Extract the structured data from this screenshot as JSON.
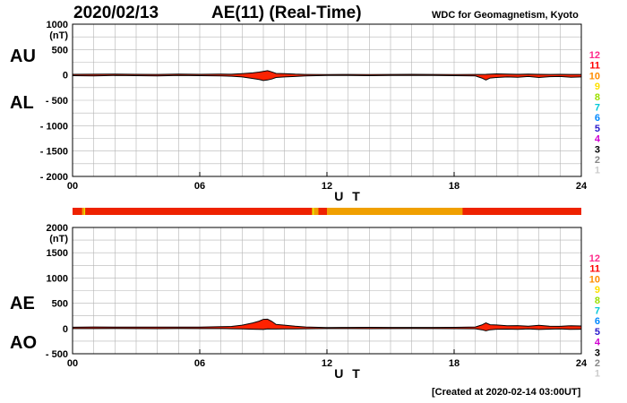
{
  "header": {
    "date": "2020/02/13",
    "title": "AE(11) (Real-Time)",
    "credit": "WDC for Geomagnetism, Kyoto"
  },
  "footer": {
    "created": "[Created at 2020-02-14 03:00UT]"
  },
  "colors": {
    "fill": "#ff2200",
    "line": "#000000",
    "grid": "#b4b4b4",
    "baseline": "#666666",
    "status_red": "#ee2200",
    "status_orange": "#f0a000",
    "status_yellow": "#e8e800"
  },
  "station_legend": [
    {
      "label": "12",
      "color": "#ff2a8a"
    },
    {
      "label": "11",
      "color": "#ff0000"
    },
    {
      "label": "10",
      "color": "#ff8c00"
    },
    {
      "label": "9",
      "color": "#ffe000"
    },
    {
      "label": "8",
      "color": "#9be000"
    },
    {
      "label": "7",
      "color": "#00c8d8"
    },
    {
      "label": "6",
      "color": "#0088ff"
    },
    {
      "label": "5",
      "color": "#2a1acc"
    },
    {
      "label": "4",
      "color": "#d000d0"
    },
    {
      "label": "3",
      "color": "#000000"
    },
    {
      "label": "2",
      "color": "#888888"
    },
    {
      "label": "1",
      "color": "#cccccc"
    }
  ],
  "status_bar": {
    "segments": [
      {
        "start": 0,
        "end": 0.45,
        "color": "#ee2200"
      },
      {
        "start": 0.45,
        "end": 0.55,
        "color": "#f0a000"
      },
      {
        "start": 0.55,
        "end": 0.6,
        "color": "#e8e800"
      },
      {
        "start": 0.6,
        "end": 11.3,
        "color": "#ee2200"
      },
      {
        "start": 11.3,
        "end": 11.4,
        "color": "#e8e800"
      },
      {
        "start": 11.4,
        "end": 11.6,
        "color": "#f0a000"
      },
      {
        "start": 11.6,
        "end": 12.0,
        "color": "#ee2200"
      },
      {
        "start": 12.0,
        "end": 18.4,
        "color": "#f0a000"
      },
      {
        "start": 18.4,
        "end": 24,
        "color": "#ee2200"
      }
    ]
  },
  "chart_data": [
    {
      "type": "area",
      "name": "AU-AL",
      "ylabel": [
        "AU",
        "AL"
      ],
      "unit": "(nT)",
      "xlabel": "U T",
      "xlim": [
        0,
        24
      ],
      "ylim": [
        -2000,
        1000
      ],
      "x_ticks": [
        0,
        6,
        12,
        18,
        24
      ],
      "x_tick_labels": [
        "00",
        "06",
        "12",
        "18",
        "24"
      ],
      "y_ticks": [
        1000,
        500,
        0,
        -500,
        -1000,
        -1500,
        -2000
      ],
      "y_tick_labels": [
        "1000",
        "500",
        "0",
        "- 500",
        "- 1000",
        "- 1500",
        "- 2000"
      ],
      "series": [
        {
          "name": "AU",
          "x": [
            0,
            1,
            2,
            3,
            4,
            5,
            6,
            7,
            7.5,
            8,
            8.5,
            8.8,
            9,
            9.2,
            9.4,
            9.6,
            10,
            10.5,
            11,
            12,
            13,
            14,
            15,
            16,
            17,
            18,
            19,
            19.5,
            20,
            20.5,
            21,
            21.5,
            22,
            22.5,
            23,
            23.5,
            24
          ],
          "y": [
            12,
            14,
            15,
            12,
            10,
            15,
            12,
            16,
            14,
            25,
            40,
            55,
            70,
            85,
            60,
            30,
            25,
            15,
            10,
            8,
            10,
            8,
            10,
            12,
            10,
            8,
            10,
            12,
            20,
            15,
            12,
            15,
            12,
            10,
            12,
            10,
            10
          ]
        },
        {
          "name": "AL",
          "x": [
            0,
            1,
            2,
            3,
            4,
            5,
            6,
            7,
            7.5,
            8,
            8.5,
            8.8,
            9,
            9.2,
            9.4,
            9.6,
            10,
            10.5,
            11,
            12,
            13,
            14,
            15,
            16,
            17,
            18,
            19,
            19.3,
            19.5,
            19.7,
            20,
            20.5,
            21,
            21.5,
            22,
            22.5,
            23,
            23.5,
            24
          ],
          "y": [
            -15,
            -18,
            -12,
            -15,
            -18,
            -12,
            -15,
            -20,
            -25,
            -40,
            -70,
            -90,
            -110,
            -100,
            -80,
            -50,
            -40,
            -30,
            -20,
            -10,
            -12,
            -15,
            -12,
            -10,
            -12,
            -15,
            -20,
            -60,
            -100,
            -60,
            -50,
            -40,
            -45,
            -30,
            -50,
            -35,
            -30,
            -45,
            -40
          ]
        }
      ]
    },
    {
      "type": "area",
      "name": "AE-AO",
      "ylabel": [
        "AE",
        "AO"
      ],
      "unit": "(nT)",
      "xlabel": "U T",
      "xlim": [
        0,
        24
      ],
      "ylim": [
        -500,
        2000
      ],
      "x_ticks": [
        0,
        6,
        12,
        18,
        24
      ],
      "x_tick_labels": [
        "00",
        "06",
        "12",
        "18",
        "24"
      ],
      "y_ticks": [
        2000,
        1500,
        1000,
        500,
        0,
        -500
      ],
      "y_tick_labels": [
        "2000",
        "1500",
        "1000",
        "500",
        "0",
        "- 500"
      ],
      "series": [
        {
          "name": "AE",
          "x": [
            0,
            1,
            2,
            3,
            4,
            5,
            6,
            7,
            7.5,
            8,
            8.5,
            8.8,
            9,
            9.2,
            9.4,
            9.6,
            10,
            10.5,
            11,
            12,
            13,
            14,
            15,
            16,
            17,
            18,
            19,
            19.3,
            19.5,
            19.7,
            20,
            20.5,
            21,
            21.5,
            22,
            22.5,
            23,
            23.5,
            24
          ],
          "y": [
            25,
            30,
            28,
            27,
            28,
            27,
            27,
            35,
            40,
            65,
            110,
            145,
            180,
            185,
            140,
            80,
            65,
            45,
            30,
            18,
            22,
            23,
            22,
            22,
            22,
            23,
            30,
            70,
            110,
            75,
            70,
            55,
            57,
            45,
            62,
            45,
            42,
            55,
            50
          ]
        },
        {
          "name": "AO",
          "x": [
            0,
            1,
            2,
            3,
            4,
            5,
            6,
            7,
            7.5,
            8,
            8.5,
            8.8,
            9,
            9.2,
            9.4,
            9.6,
            10,
            10.5,
            11,
            12,
            13,
            14,
            15,
            16,
            17,
            18,
            19,
            19.3,
            19.5,
            19.7,
            20,
            20.5,
            21,
            21.5,
            22,
            22.5,
            23,
            23.5,
            24
          ],
          "y": [
            -2,
            -2,
            2,
            -2,
            -4,
            2,
            -2,
            -2,
            -5,
            -8,
            -15,
            -18,
            -20,
            -8,
            -10,
            -10,
            -8,
            -8,
            -5,
            -1,
            -1,
            -4,
            -1,
            1,
            -1,
            -4,
            -5,
            -24,
            -44,
            -24,
            -15,
            -12,
            -17,
            -8,
            -19,
            -12,
            -9,
            -17,
            -15
          ]
        }
      ]
    }
  ]
}
